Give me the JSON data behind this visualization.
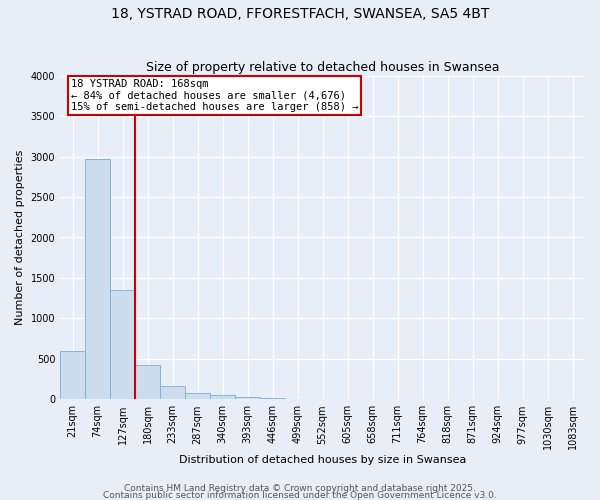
{
  "title1": "18, YSTRAD ROAD, FFORESTFACH, SWANSEA, SA5 4BT",
  "title2": "Size of property relative to detached houses in Swansea",
  "xlabel": "Distribution of detached houses by size in Swansea",
  "ylabel": "Number of detached properties",
  "bin_labels": [
    "21sqm",
    "74sqm",
    "127sqm",
    "180sqm",
    "233sqm",
    "287sqm",
    "340sqm",
    "393sqm",
    "446sqm",
    "499sqm",
    "552sqm",
    "605sqm",
    "658sqm",
    "711sqm",
    "764sqm",
    "818sqm",
    "871sqm",
    "924sqm",
    "977sqm",
    "1030sqm",
    "1083sqm"
  ],
  "bar_values": [
    600,
    2970,
    1350,
    430,
    170,
    80,
    50,
    30,
    20,
    5,
    2,
    1,
    1,
    0,
    0,
    0,
    0,
    0,
    0,
    0,
    0
  ],
  "bar_color": "#ccddf0",
  "bar_edge_color": "#7aafd4",
  "background_color": "#e8eef8",
  "grid_color": "#ffffff",
  "vline_color": "#cc0000",
  "annotation_text": "18 YSTRAD ROAD: 168sqm\n← 84% of detached houses are smaller (4,676)\n15% of semi-detached houses are larger (858) →",
  "annotation_box_color": "#cc0000",
  "ylim": [
    0,
    4000
  ],
  "yticks": [
    0,
    500,
    1000,
    1500,
    2000,
    2500,
    3000,
    3500,
    4000
  ],
  "footer1": "Contains HM Land Registry data © Crown copyright and database right 2025.",
  "footer2": "Contains public sector information licensed under the Open Government Licence v3.0.",
  "title_fontsize": 10,
  "subtitle_fontsize": 9,
  "axis_label_fontsize": 8,
  "tick_fontsize": 7,
  "footer_fontsize": 6.5
}
